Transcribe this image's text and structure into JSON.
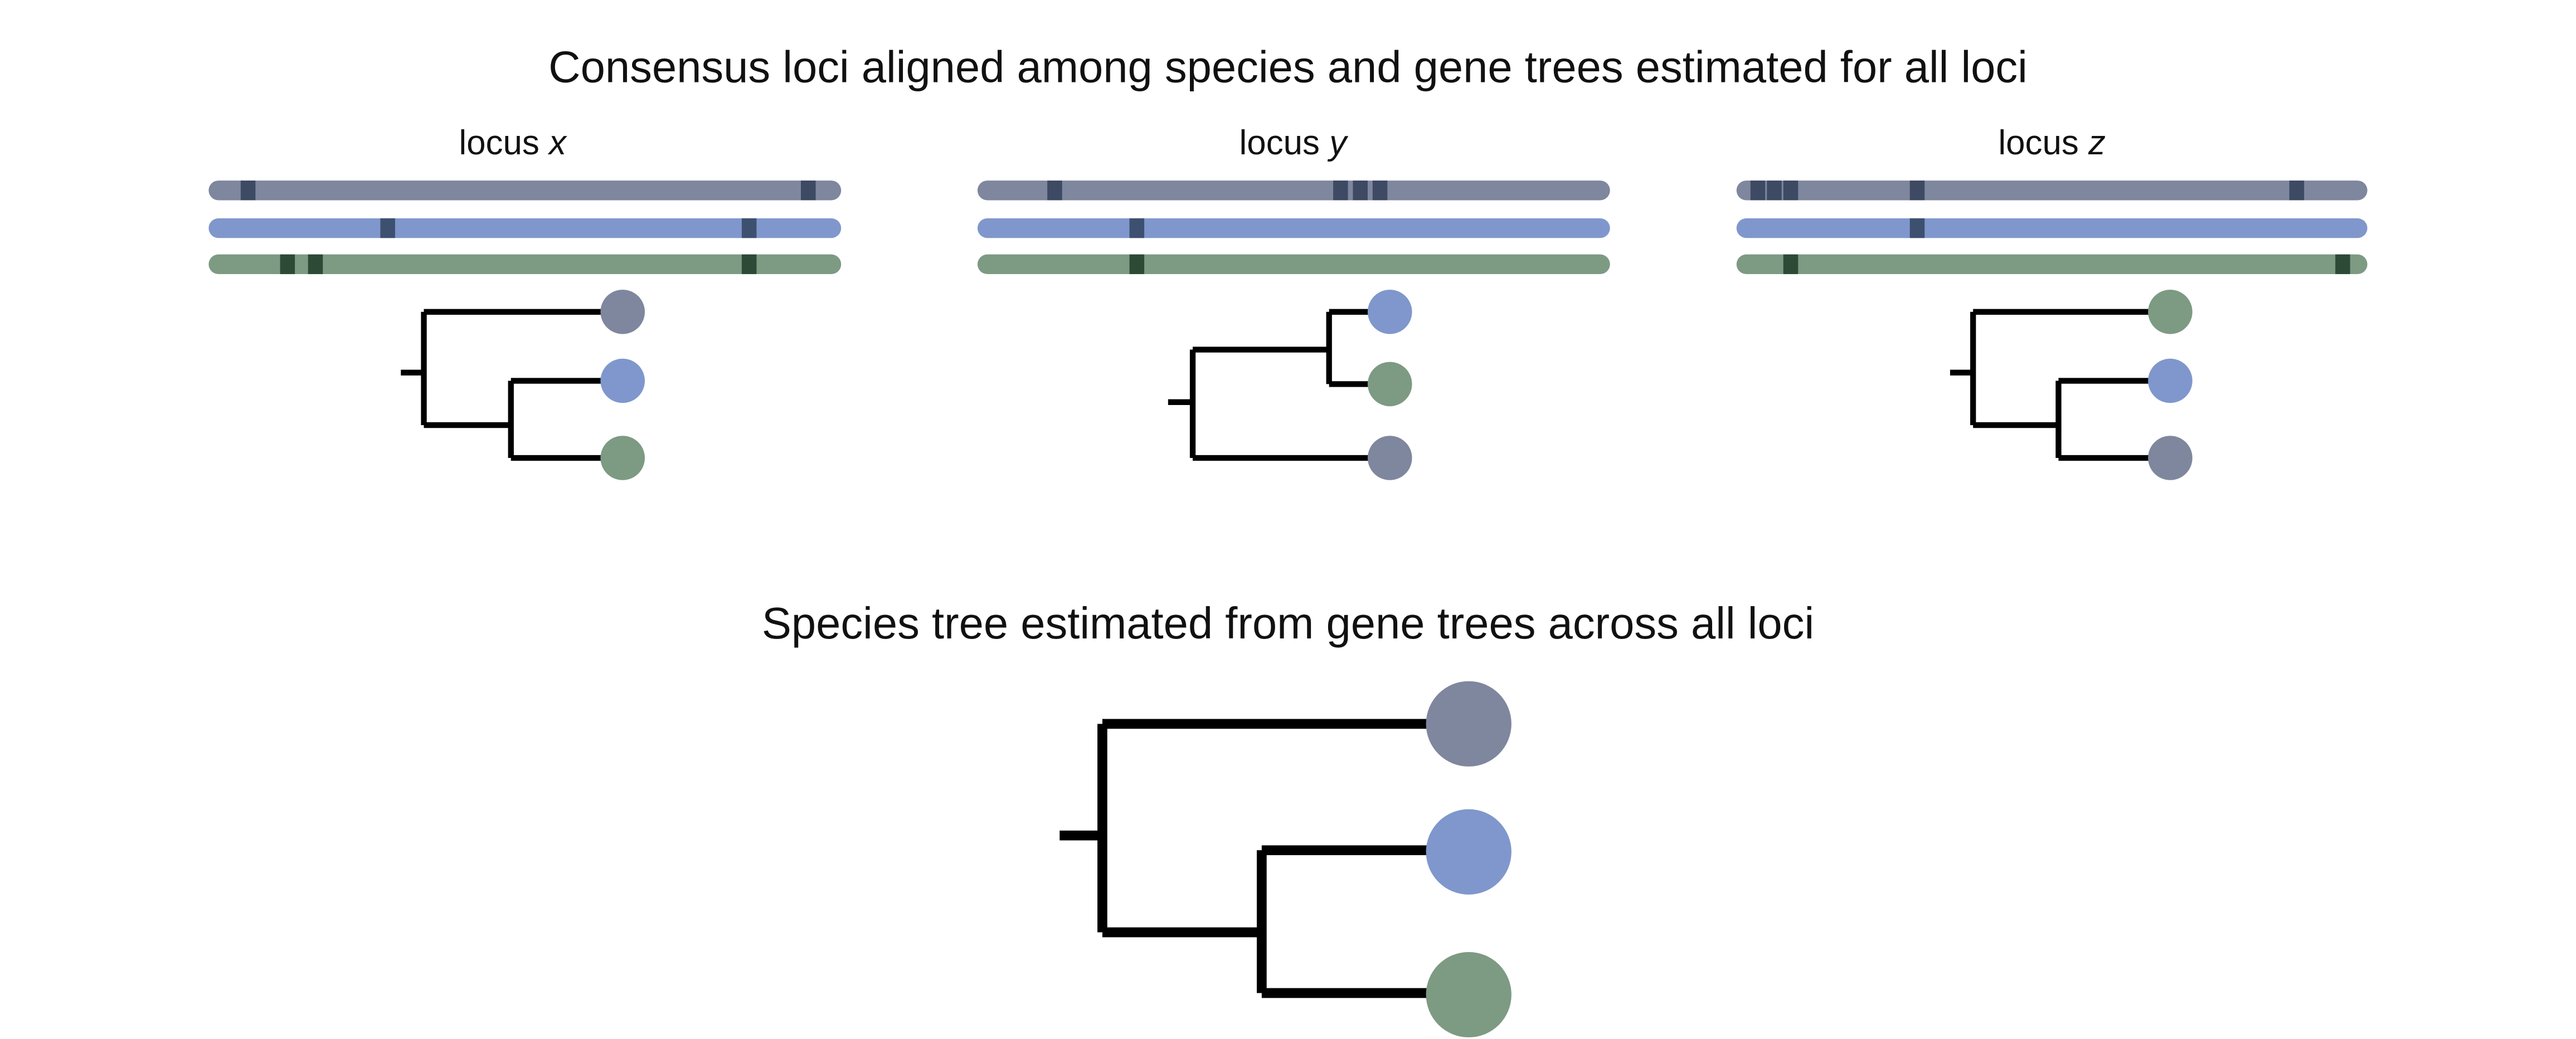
{
  "title": "Consensus loci aligned among species and gene trees estimated for all loci",
  "loci": [
    {
      "label": "locus",
      "variable": "x"
    },
    {
      "label": "locus",
      "variable": "y"
    },
    {
      "label": "locus",
      "variable": "z"
    }
  ],
  "species_tree_title": "Species tree estimated from gene trees across all loci"
}
